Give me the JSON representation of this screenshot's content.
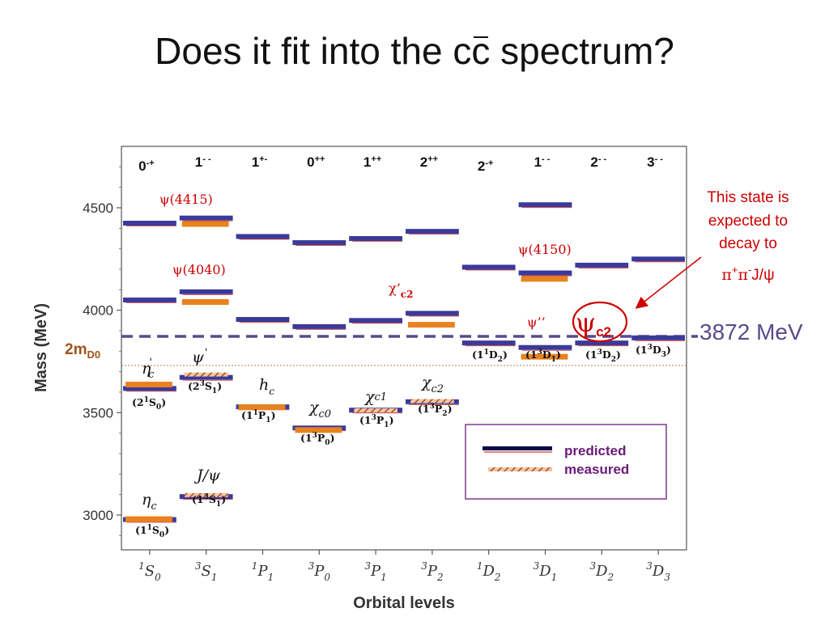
{
  "slide": {
    "title_pre": "Does it fit into the c",
    "title_c": "c",
    "title_post": " spectrum?"
  },
  "chart_data": {
    "type": "energy-level diagram",
    "xlabel": "Orbital levels",
    "ylabel": "Mass (MeV)",
    "ylim": [
      2830,
      4800
    ],
    "yticks": [
      3000,
      3500,
      4000,
      4500
    ],
    "columns": [
      {
        "orbital": {
          "L": "1",
          "sup": "S",
          "sub": "0"
        },
        "jpc": {
          "J": "0",
          "PC": "-+"
        }
      },
      {
        "orbital": {
          "L": "3",
          "sup": "S",
          "sub": "1"
        },
        "jpc": {
          "J": "1",
          "PC": "- -"
        }
      },
      {
        "orbital": {
          "L": "1",
          "sup": "P",
          "sub": "1"
        },
        "jpc": {
          "J": "1",
          "PC": "+-"
        }
      },
      {
        "orbital": {
          "L": "3",
          "sup": "P",
          "sub": "0"
        },
        "jpc": {
          "J": "0",
          "PC": "++"
        }
      },
      {
        "orbital": {
          "L": "3",
          "sup": "P",
          "sub": "1"
        },
        "jpc": {
          "J": "1",
          "PC": "++"
        }
      },
      {
        "orbital": {
          "L": "3",
          "sup": "P",
          "sub": "2"
        },
        "jpc": {
          "J": "2",
          "PC": "++"
        }
      },
      {
        "orbital": {
          "L": "1",
          "sup": "D",
          "sub": "2"
        },
        "jpc": {
          "J": "2",
          "PC": "-+"
        }
      },
      {
        "orbital": {
          "L": "3",
          "sup": "D",
          "sub": "1"
        },
        "jpc": {
          "J": "1",
          "PC": "- -"
        }
      },
      {
        "orbital": {
          "L": "3",
          "sup": "D",
          "sub": "2"
        },
        "jpc": {
          "J": "2",
          "PC": "- -"
        }
      },
      {
        "orbital": {
          "L": "3",
          "sup": "D",
          "sub": "3"
        },
        "jpc": {
          "J": "3",
          "PC": "- -"
        }
      }
    ],
    "predicted": [
      {
        "col": 0,
        "mass": 2978
      },
      {
        "col": 0,
        "mass": 3618
      },
      {
        "col": 0,
        "mass": 4050
      },
      {
        "col": 0,
        "mass": 4425
      },
      {
        "col": 1,
        "mass": 3090
      },
      {
        "col": 1,
        "mass": 3672
      },
      {
        "col": 1,
        "mass": 4090
      },
      {
        "col": 1,
        "mass": 4450
      },
      {
        "col": 2,
        "mass": 3528
      },
      {
        "col": 2,
        "mass": 3955
      },
      {
        "col": 2,
        "mass": 4360
      },
      {
        "col": 3,
        "mass": 3425
      },
      {
        "col": 3,
        "mass": 3920
      },
      {
        "col": 3,
        "mass": 4330
      },
      {
        "col": 4,
        "mass": 3512
      },
      {
        "col": 4,
        "mass": 3950
      },
      {
        "col": 4,
        "mass": 4350
      },
      {
        "col": 5,
        "mass": 3553
      },
      {
        "col": 5,
        "mass": 3985
      },
      {
        "col": 5,
        "mass": 4385
      },
      {
        "col": 6,
        "mass": 3840
      },
      {
        "col": 6,
        "mass": 4210
      },
      {
        "col": 7,
        "mass": 3818
      },
      {
        "col": 7,
        "mass": 4182
      },
      {
        "col": 7,
        "mass": 4515
      },
      {
        "col": 8,
        "mass": 3840
      },
      {
        "col": 8,
        "mass": 4220
      },
      {
        "col": 9,
        "mass": 3865
      },
      {
        "col": 9,
        "mass": 4250
      }
    ],
    "measured": [
      {
        "col": 0,
        "mass": 2980,
        "kind": "bar"
      },
      {
        "col": 0,
        "mass": 3637,
        "kind": "bar"
      },
      {
        "col": 1,
        "mass": 3097,
        "kind": "hatch"
      },
      {
        "col": 1,
        "mass": 3686,
        "kind": "hatch"
      },
      {
        "col": 1,
        "mass": 4040,
        "kind": "bar"
      },
      {
        "col": 1,
        "mass": 4421,
        "kind": "bar"
      },
      {
        "col": 2,
        "mass": 3526,
        "kind": "bar"
      },
      {
        "col": 3,
        "mass": 3415,
        "kind": "bar"
      },
      {
        "col": 4,
        "mass": 3511,
        "kind": "hatch"
      },
      {
        "col": 5,
        "mass": 3556,
        "kind": "hatch"
      },
      {
        "col": 5,
        "mass": 3929,
        "kind": "bar"
      },
      {
        "col": 7,
        "mass": 3773,
        "kind": "bar"
      },
      {
        "col": 7,
        "mass": 4153,
        "kind": "bar"
      }
    ],
    "threshold_3872": {
      "mass": 3872,
      "label": "3872 MeV"
    },
    "threshold_2mD0": {
      "mass": 3730,
      "label_main": "2m",
      "label_sub": "D0"
    },
    "red_labels": [
      {
        "id": "psi4415",
        "text": "ψ(4415)"
      },
      {
        "id": "psi4040",
        "text": "ψ(4040)"
      },
      {
        "id": "psi4150",
        "text": "ψ(4150)"
      },
      {
        "id": "chic2p",
        "main": "χ’",
        "sub": "c2"
      },
      {
        "id": "psipp",
        "text": "ψ’’"
      }
    ],
    "state_labels": [
      {
        "id": "etac2s",
        "main": "η",
        "sup": "'",
        "sub": "c"
      },
      {
        "id": "psi2s",
        "main": "ψ",
        "sup": "'"
      },
      {
        "id": "hc",
        "main": "h",
        "sub": "c"
      },
      {
        "id": "chic0",
        "main": "χ",
        "sub": "c0"
      },
      {
        "id": "chic1",
        "main": "χ",
        "sub": "c1"
      },
      {
        "id": "chic2",
        "main": "χ",
        "sub": "c2"
      },
      {
        "id": "etac",
        "main": "η",
        "sub": "c"
      },
      {
        "id": "jpsi",
        "main": "J/ψ"
      }
    ],
    "term_labels": [
      {
        "id": "t_etac2s",
        "n": "2",
        "sup": "1",
        "L": "S",
        "sub": "0"
      },
      {
        "id": "t_psi2s",
        "n": "2",
        "sup": "3",
        "L": "S",
        "sub": "1"
      },
      {
        "id": "t_hc",
        "n": "1",
        "sup": "1",
        "L": "P",
        "sub": "1"
      },
      {
        "id": "t_chic0",
        "n": "1",
        "sup": "3",
        "L": "P",
        "sub": "0"
      },
      {
        "id": "t_chic1",
        "n": "1",
        "sup": "3",
        "L": "P",
        "sub": "1"
      },
      {
        "id": "t_chic2",
        "n": "1",
        "sup": "3",
        "L": "P",
        "sub": "2"
      },
      {
        "id": "t_etac",
        "n": "1",
        "sup": "1",
        "L": "S",
        "sub": "0"
      },
      {
        "id": "t_jpsi",
        "n": "1",
        "sup": "3",
        "L": "S",
        "sub": "1"
      },
      {
        "id": "t_d2",
        "n": "1",
        "sup": "1",
        "L": "D",
        "sub": "2"
      },
      {
        "id": "t_d1",
        "n": "1",
        "sup": "3",
        "L": "D",
        "sub": "1"
      },
      {
        "id": "t_d2b",
        "n": "1",
        "sup": "3",
        "L": "D",
        "sub": "2"
      },
      {
        "id": "t_d3",
        "n": "1",
        "sup": "3",
        "L": "D",
        "sub": "3"
      }
    ],
    "psi_c2_circle": {
      "main": "ψ",
      "sub": "c2"
    },
    "annotation": {
      "line1": "This state is",
      "line2": "expected to",
      "line3": "decay to",
      "line4_pi1": "π",
      "line4_sup1": "+",
      "line4_pi2": "π",
      "line4_sup2": "-",
      "line4_tail": "J/ψ"
    },
    "legend": {
      "predicted": "predicted",
      "measured": "measured",
      "placement": "bottom-right"
    },
    "colors": {
      "predicted": "#3a3a9a",
      "predicted_dark": "#0a0a4a",
      "measured": "#e8821e",
      "hatch": "#b04a2a",
      "label_red": "#cc0000",
      "threshold": "#5a4a8a",
      "threshold_2mD0": "#a0521a",
      "legend_border": "#7a2a8a"
    }
  }
}
